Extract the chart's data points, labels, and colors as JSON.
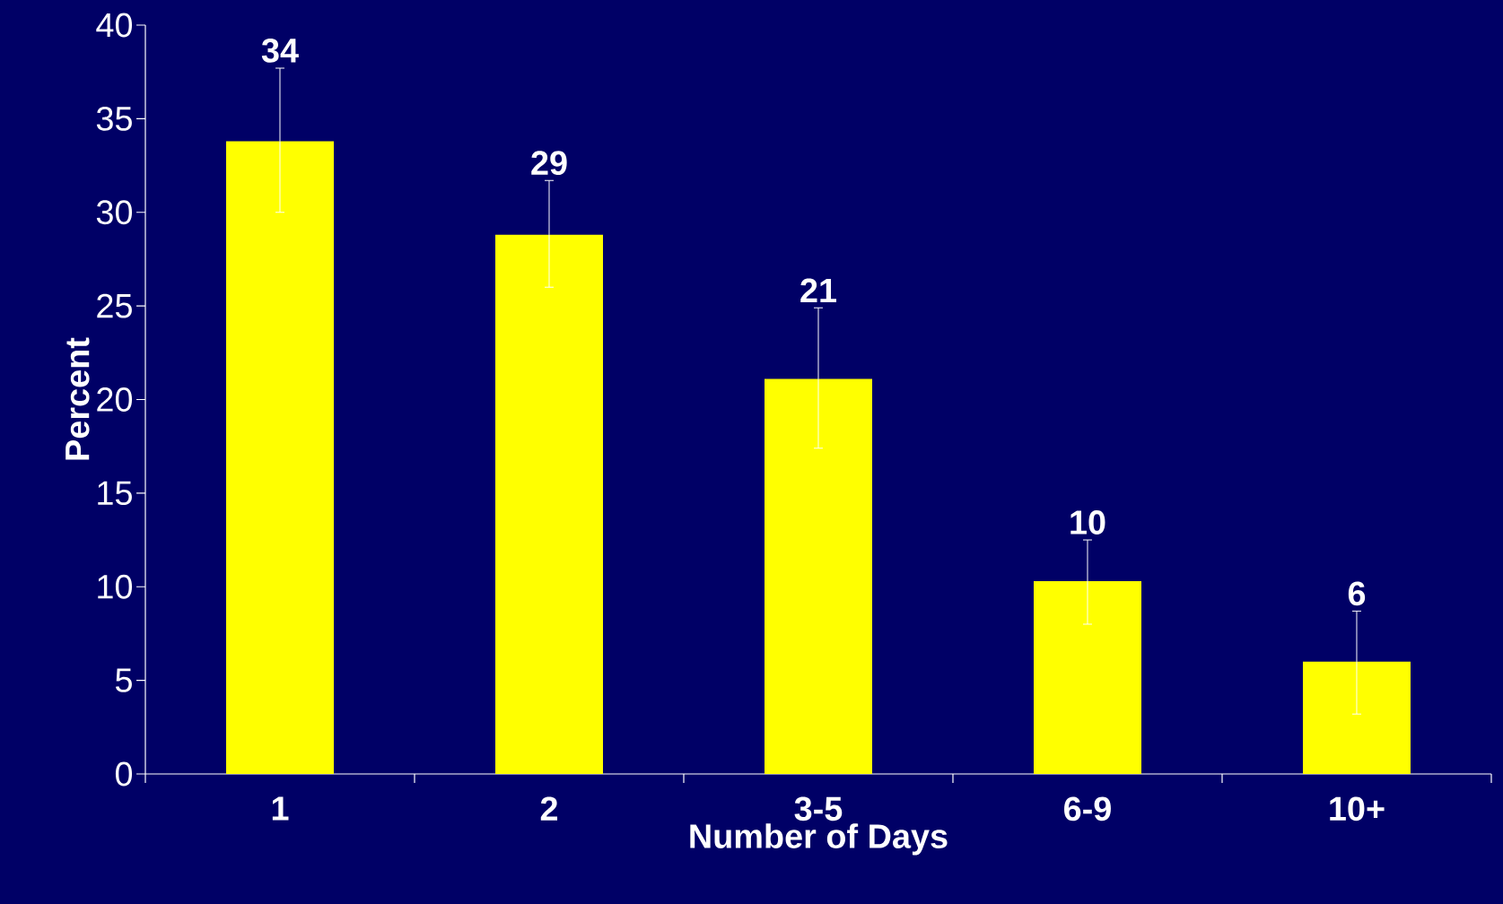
{
  "chart_data": {
    "type": "bar",
    "xlabel": "Number of Days",
    "ylabel": "Percent",
    "categories": [
      "1",
      "2",
      "3-5",
      "6-9",
      "10+"
    ],
    "values": [
      33.8,
      28.8,
      21.1,
      10.3,
      6.0
    ],
    "errors": [
      [
        30.0,
        37.7
      ],
      [
        26.0,
        31.7
      ],
      [
        17.4,
        24.9
      ],
      [
        8.0,
        12.5
      ],
      [
        3.2,
        8.7
      ]
    ],
    "value_labels": [
      "34",
      "29",
      "21",
      "10",
      "6"
    ],
    "color": "#ffff00",
    "ylim": [
      0,
      40
    ],
    "yticks": [
      0,
      5,
      10,
      15,
      20,
      25,
      30,
      35,
      40
    ]
  }
}
